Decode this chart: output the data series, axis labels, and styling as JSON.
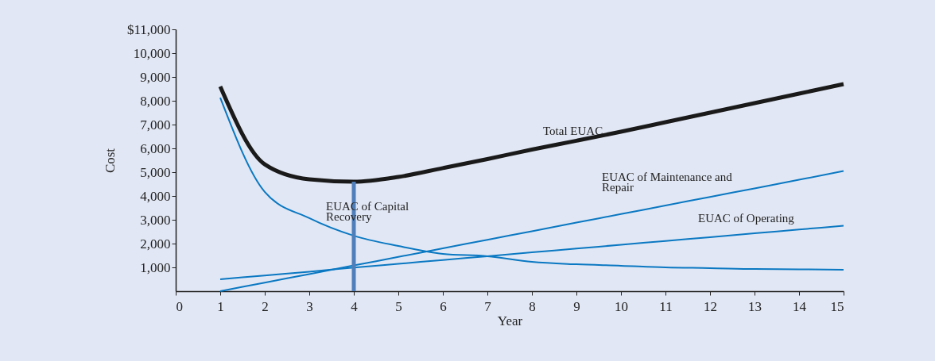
{
  "chart_data": {
    "type": "line",
    "xlabel": "Year",
    "ylabel": "Cost",
    "x": [
      1,
      2,
      3,
      4,
      5,
      6,
      7,
      8,
      9,
      10,
      11,
      12,
      13,
      14,
      15
    ],
    "series": [
      {
        "color": "#1a1a1a",
        "values": [
          8600,
          5330,
          4700,
          4600,
          4800,
          5170,
          5550,
          5950,
          6320,
          6700,
          7100,
          7500,
          7900,
          8300,
          8700
        ]
      },
      {
        "color": "#0a78c2",
        "values": [
          8130,
          4170,
          3070,
          2330,
          1900,
          1570,
          1470,
          1230,
          1130,
          1070,
          1000,
          970,
          930,
          920,
          900
        ]
      },
      {
        "color": "#0a78c2",
        "values": [
          0,
          360,
          720,
          1080,
          1440,
          1800,
          2160,
          2520,
          2880,
          3240,
          3600,
          3960,
          4320,
          4680,
          5050
        ]
      },
      {
        "color": "#0a78c2",
        "values": [
          500,
          660,
          820,
          990,
          1150,
          1310,
          1470,
          1630,
          1790,
          1950,
          2110,
          2270,
          2430,
          2590,
          2750
        ]
      }
    ],
    "xlim": [
      0,
      15
    ],
    "xticks": [
      0,
      1,
      2,
      3,
      4,
      5,
      6,
      7,
      8,
      9,
      10,
      11,
      12,
      13,
      14,
      15
    ],
    "ylim": [
      0,
      11000
    ],
    "yticks": [
      {
        "value": 1000,
        "label": "1,000"
      },
      {
        "value": 2000,
        "label": "2,000"
      },
      {
        "value": 3000,
        "label": "3,000"
      },
      {
        "value": 4000,
        "label": "4,000"
      },
      {
        "value": 5000,
        "label": "5,000"
      },
      {
        "value": 6000,
        "label": "6,000"
      },
      {
        "value": 7000,
        "label": "7,000"
      },
      {
        "value": 8000,
        "label": "8,000"
      },
      {
        "value": 9000,
        "label": "9,000"
      },
      {
        "value": 10000,
        "label": "10,000"
      },
      {
        "value": 11000,
        "label": "$11,000"
      }
    ],
    "annotations": [
      "Total EUAC",
      "EUAC of Maintenance and\nRepair",
      "EUAC of Operating",
      "EUAC of Capital\nRecovery"
    ],
    "ref_lines": [
      {
        "axis": "x",
        "value": 4,
        "color": "#4f7fba"
      }
    ],
    "grid": false,
    "marker": "none",
    "line_style": "solid"
  }
}
